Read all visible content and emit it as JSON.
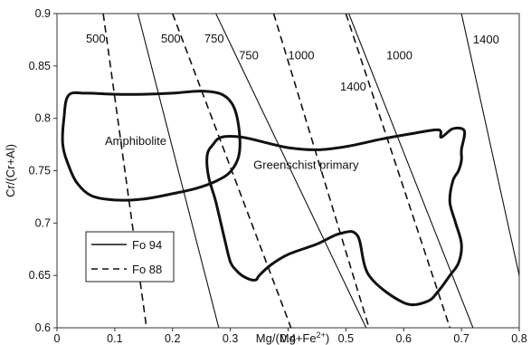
{
  "chart_data": {
    "type": "line",
    "xlabel": "Mg/(Mg+Fe",
    "xlabel_superscript": "2+",
    "xlabel_suffix": ")",
    "ylabel": "Cr/(Cr+Al)",
    "xlim": [
      0,
      0.8
    ],
    "ylim": [
      0.6,
      0.9
    ],
    "x_ticks": [
      "0",
      "0.1",
      "0.2",
      "0.3",
      "0.4",
      "0.5",
      "0.6",
      "0.7",
      "0.8"
    ],
    "y_ticks": [
      "0.6",
      "0.65",
      "0.7",
      "0.75",
      "0.8",
      "0.85",
      "0.9"
    ],
    "grid": false,
    "legend_position": "bottom-left",
    "legend": [
      {
        "label": "Fo 94",
        "style": "solid"
      },
      {
        "label": "Fo 88",
        "style": "dashed"
      }
    ],
    "isotherms": [
      {
        "label": "500",
        "style": "dashed",
        "x": [
          0.08,
          0.155
        ],
        "y": [
          0.9,
          0.6
        ],
        "label_pos": [
          0.05,
          0.876
        ]
      },
      {
        "label": "500",
        "style": "solid",
        "x": [
          0.14,
          0.28
        ],
        "y": [
          0.9,
          0.6
        ],
        "label_pos": [
          0.18,
          0.876
        ]
      },
      {
        "label": "750",
        "style": "dashed",
        "x": [
          0.2,
          0.405
        ],
        "y": [
          0.9,
          0.6
        ],
        "label_pos": [
          0.255,
          0.876
        ]
      },
      {
        "label": "750",
        "style": "solid",
        "x": [
          0.275,
          0.535
        ],
        "y": [
          0.9,
          0.6
        ],
        "label_pos": [
          0.315,
          0.86
        ]
      },
      {
        "label": "1000",
        "style": "dashed",
        "x": [
          0.375,
          0.54
        ],
        "y": [
          0.9,
          0.6
        ],
        "label_pos": [
          0.4,
          0.86
        ]
      },
      {
        "label": "1000",
        "style": "solid",
        "x": [
          0.505,
          0.72
        ],
        "y": [
          0.9,
          0.6
        ],
        "label_pos": [
          0.57,
          0.86
        ]
      },
      {
        "label": "1400",
        "style": "dashed",
        "x": [
          0.5,
          0.68
        ],
        "y": [
          0.9,
          0.6
        ],
        "label_pos": [
          0.49,
          0.83
        ]
      },
      {
        "label": "1400",
        "style": "solid",
        "x": [
          0.7,
          0.82
        ],
        "y": [
          0.9,
          0.6
        ],
        "label_pos": [
          0.72,
          0.875
        ]
      }
    ],
    "regions": [
      {
        "label": "Amphibolite",
        "label_pos": [
          0.083,
          0.778
        ],
        "x": [
          0.02,
          0.05,
          0.1,
          0.15,
          0.2,
          0.25,
          0.285,
          0.305,
          0.315,
          0.315,
          0.3,
          0.275,
          0.24,
          0.2,
          0.15,
          0.1,
          0.06,
          0.035,
          0.02,
          0.01,
          0.012,
          0.02
        ],
        "y": [
          0.822,
          0.824,
          0.823,
          0.823,
          0.824,
          0.826,
          0.823,
          0.812,
          0.79,
          0.765,
          0.749,
          0.74,
          0.733,
          0.728,
          0.723,
          0.722,
          0.726,
          0.738,
          0.755,
          0.775,
          0.8,
          0.822
        ]
      },
      {
        "label": "Greenschist primary",
        "label_pos": [
          0.34,
          0.755
        ],
        "x": [
          0.26,
          0.27,
          0.285,
          0.32,
          0.36,
          0.4,
          0.45,
          0.5,
          0.56,
          0.61,
          0.66,
          0.665,
          0.685,
          0.705,
          0.7,
          0.7,
          0.695,
          0.685,
          0.68,
          0.69,
          0.7,
          0.695,
          0.68,
          0.66,
          0.64,
          0.6,
          0.54,
          0.52,
          0.49,
          0.45,
          0.4,
          0.37,
          0.35,
          0.345,
          0.335,
          0.32,
          0.31,
          0.3,
          0.29,
          0.275,
          0.262,
          0.26
        ],
        "y": [
          0.765,
          0.775,
          0.782,
          0.782,
          0.777,
          0.772,
          0.77,
          0.773,
          0.78,
          0.785,
          0.789,
          0.782,
          0.79,
          0.788,
          0.77,
          0.76,
          0.75,
          0.74,
          0.72,
          0.7,
          0.68,
          0.662,
          0.65,
          0.635,
          0.625,
          0.624,
          0.65,
          0.688,
          0.69,
          0.68,
          0.67,
          0.66,
          0.65,
          0.646,
          0.646,
          0.65,
          0.655,
          0.663,
          0.685,
          0.72,
          0.745,
          0.765
        ]
      }
    ]
  }
}
